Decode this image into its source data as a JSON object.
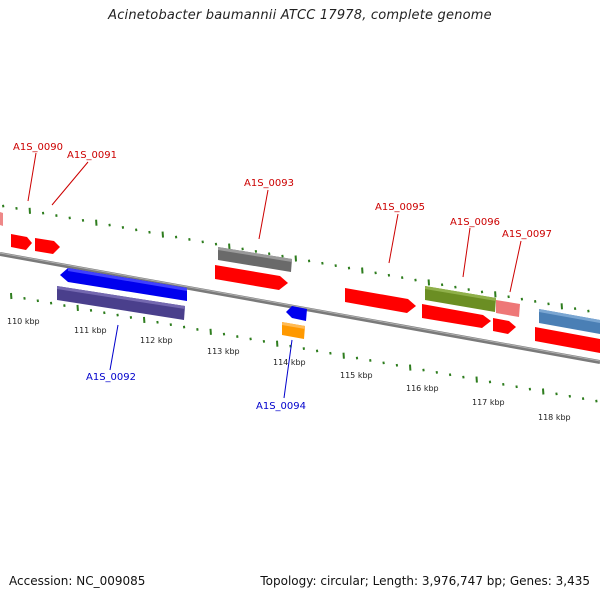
{
  "header": {
    "title": "Acinetobacter baumannii ATCC 17978, complete genome"
  },
  "footer": {
    "accession": "Accession: NC_009085",
    "summary": "Topology: circular; Length: 3,976,747 bp; Genes: 3,435"
  },
  "scale_labels": [
    "110 kbp",
    "111 kbp",
    "112 kbp",
    "113 kbp",
    "114 kbp",
    "115 kbp",
    "116 kbp",
    "117 kbp",
    "118 kbp"
  ],
  "colors": {
    "forward_label": "#cc0000",
    "reverse_label": "#0000cc",
    "tick": "#2e7d1e",
    "backbone": "#808080",
    "red": "#ff0000",
    "blue": "#0000ee",
    "navy": "#4a3f8c",
    "grey": "#707070",
    "orange": "#ff9900",
    "olive": "#6b8e23",
    "pink": "#ee7777",
    "steel": "#4a7fb5"
  },
  "genes": [
    {
      "label": "A1S_0090",
      "strand": "+",
      "color": "red"
    },
    {
      "label": "A1S_0091",
      "strand": "+",
      "color": "red"
    },
    {
      "label": "A1S_0092",
      "strand": "-",
      "color": "blue"
    },
    {
      "label": "A1S_0093",
      "strand": "+",
      "color": "grey"
    },
    {
      "label": "A1S_0094",
      "strand": "-",
      "color": "blue"
    },
    {
      "label": "A1S_0095",
      "strand": "+",
      "color": "red"
    },
    {
      "label": "A1S_0096",
      "strand": "+",
      "color": "olive"
    },
    {
      "label": "A1S_0097",
      "strand": "+",
      "color": "pink"
    }
  ]
}
